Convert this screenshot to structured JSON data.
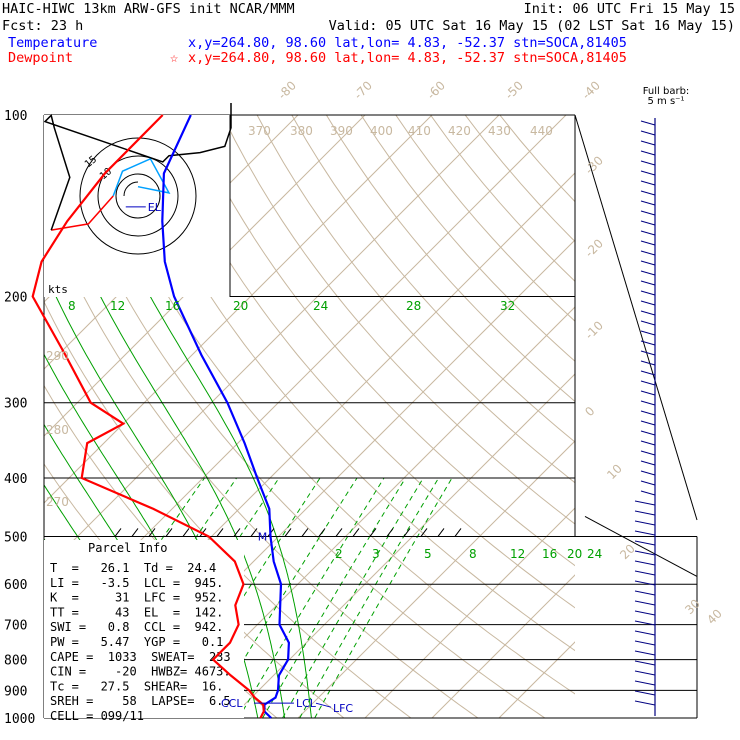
{
  "header": {
    "line1_left": "HAIC-HIWC 13km ARW-GFS init   NCAR/MMM",
    "line1_right": "Init: 06 UTC Fri 15 May 15",
    "line2_left": "Fcst:    23 h",
    "line2_right": "Valid: 05 UTC Sat 16 May 15 (02 LST Sat 16 May 15)",
    "temp_label": "Temperature",
    "temp_info": "x,y=264.80, 98.60    lat,lon=  4.83, -52.37   stn=SOCA,81405",
    "dew_label": "Dewpoint",
    "dew_star": "☆",
    "dew_info": "x,y=264.80, 98.60    lat,lon=  4.83, -52.37   stn=SOCA,81405"
  },
  "wind_legend": {
    "line1": "Full barb:",
    "line2": "5 m s⁻¹"
  },
  "hodograph": {
    "units_label": "kts",
    "ring_labels": [
      "15",
      "10"
    ]
  },
  "parcel_info": {
    "title": "Parcel Info",
    "rows": [
      "T  =   26.1  Td =  24.4",
      "LI =   -3.5  LCL =  945.",
      "K  =     31  LFC =  952.",
      "TT =     43  EL  =  142.",
      "SWI =   0.8  CCL =  942.",
      "PW =   5.47  YGP =   0.1",
      "CAPE =  1033  SWEAT=  233",
      "CIN =    -20  HWBZ= 4673.",
      "Tc =   27.5  SHEAR=  16.",
      "SREH =    58  LAPSE=  6.5",
      "CELL = 099/11"
    ]
  },
  "level_labels": {
    "el": "EL",
    "ccl": "CCL",
    "lcl": "LCL",
    "lfc": "LFC",
    "m": "M"
  },
  "colors": {
    "temperature": "#0000ff",
    "dewpoint": "#ff0000",
    "isotherm": "#c8b8a0",
    "mixing_ratio": "#00a000",
    "wind": "#000080"
  },
  "chart_data": {
    "type": "line",
    "title": "",
    "y_axis": "pressure (hPa), log scale",
    "pressure_ticks": [
      100,
      200,
      300,
      400,
      500,
      600,
      700,
      800,
      900,
      1000
    ],
    "isotherm_labels": [
      "-80",
      "-70",
      "-60",
      "-50",
      "-40",
      "-30",
      "-20",
      "-10",
      "0",
      "10",
      "20",
      "30",
      "40"
    ],
    "theta_labels": [
      "370",
      "380",
      "390",
      "400",
      "410",
      "420",
      "430",
      "440",
      "290",
      "280",
      "270"
    ],
    "mixing_ratio_labels": [
      "8",
      "12",
      "16",
      "20",
      "24",
      "28",
      "32",
      "2",
      "3",
      "5",
      "8",
      "12",
      "16",
      "20",
      "24"
    ],
    "series": [
      {
        "name": "Temperature",
        "points": [
          [
            1000,
            26.0
          ],
          [
            975,
            24.0
          ],
          [
            950,
            23.0
          ],
          [
            925,
            23.6
          ],
          [
            900,
            22.9
          ],
          [
            850,
            20.8
          ],
          [
            800,
            19.8
          ],
          [
            750,
            17.4
          ],
          [
            700,
            13.3
          ],
          [
            650,
            10.5
          ],
          [
            600,
            7.5
          ],
          [
            550,
            3.0
          ],
          [
            500,
            -1.2
          ],
          [
            450,
            -5.5
          ],
          [
            400,
            -11.9
          ],
          [
            350,
            -19.0
          ],
          [
            300,
            -27.6
          ],
          [
            250,
            -38.6
          ],
          [
            200,
            -51.4
          ],
          [
            175,
            -58.0
          ],
          [
            150,
            -64.4
          ],
          [
            125,
            -71.3
          ],
          [
            100,
            -76.0
          ]
        ]
      },
      {
        "name": "Dewpoint",
        "points": [
          [
            1000,
            24.4
          ],
          [
            975,
            23.9
          ],
          [
            950,
            22.8
          ],
          [
            925,
            20.5
          ],
          [
            900,
            18.6
          ],
          [
            850,
            13.6
          ],
          [
            800,
            8.6
          ],
          [
            750,
            8.6
          ],
          [
            700,
            7.2
          ],
          [
            650,
            3.8
          ],
          [
            600,
            1.9
          ],
          [
            550,
            -2.8
          ],
          [
            500,
            -10.4
          ],
          [
            450,
            -22.8
          ],
          [
            400,
            -38.1
          ],
          [
            350,
            -42.5
          ],
          [
            325,
            -40.0
          ],
          [
            300,
            -48.0
          ],
          [
            250,
            -58.9
          ],
          [
            200,
            -72.5
          ],
          [
            175,
            -76.4
          ],
          [
            150,
            -78.6
          ],
          [
            125,
            -80.1
          ],
          [
            100,
            -80.2
          ]
        ]
      }
    ],
    "hodograph_points": [
      [
        0,
        3
      ],
      [
        10,
        1
      ],
      [
        4,
        12
      ],
      [
        -5,
        8
      ],
      [
        -8,
        0
      ],
      [
        -16,
        -9
      ],
      [
        -28,
        -11
      ],
      [
        -22,
        6
      ],
      [
        -27,
        22
      ],
      [
        -28,
        26
      ],
      [
        -30,
        24
      ],
      [
        8,
        11
      ],
      [
        10,
        13
      ],
      [
        20,
        14
      ],
      [
        28,
        16
      ],
      [
        30,
        22
      ],
      [
        30,
        30
      ]
    ],
    "wind_barb_pressures": [
      100,
      200,
      300,
      400,
      500,
      600,
      700,
      800,
      900,
      1000
    ]
  }
}
